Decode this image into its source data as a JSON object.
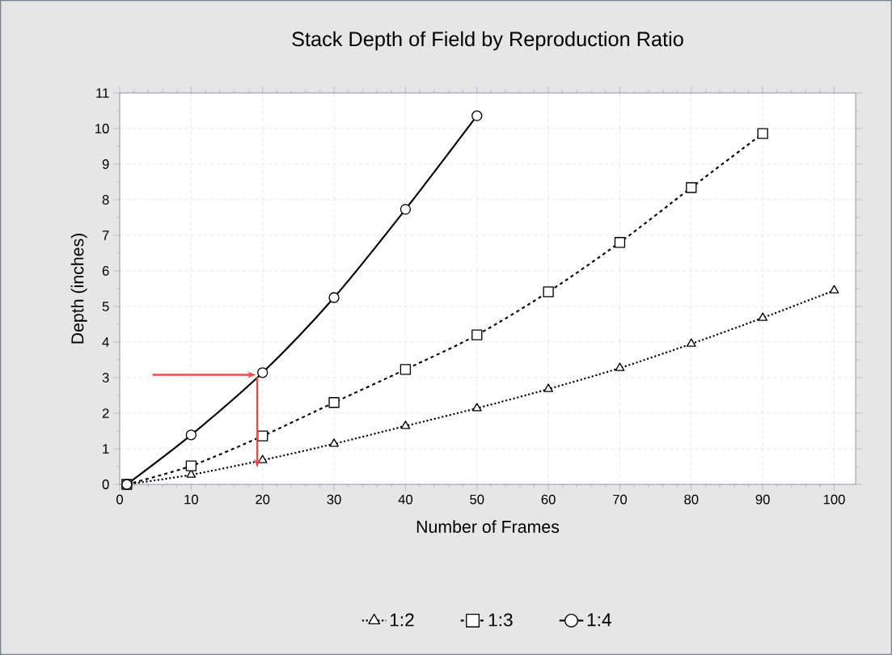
{
  "chart_data": {
    "type": "line",
    "title": "Stack Depth of Field by Reproduction Ratio",
    "xlabel": "Number of Frames",
    "ylabel": "Depth (inches)",
    "xlim": [
      0,
      103
    ],
    "xticks": [
      0,
      10,
      20,
      30,
      40,
      50,
      60,
      70,
      80,
      90,
      100
    ],
    "ylim": [
      0,
      11
    ],
    "yticks": [
      0,
      1,
      2,
      3,
      4,
      5,
      6,
      7,
      8,
      9,
      10,
      11
    ],
    "grid": true,
    "legend": "bottom",
    "series": [
      {
        "name": "1:2",
        "color": "#000000",
        "marker": "triangle",
        "line_style": "dotted",
        "x": [
          1,
          10,
          20,
          30,
          40,
          50,
          60,
          70,
          80,
          90,
          100
        ],
        "values": [
          0,
          0.27,
          0.68,
          1.14,
          1.64,
          2.14,
          2.68,
          3.27,
          3.95,
          4.68,
          5.45
        ]
      },
      {
        "name": "1:3",
        "color": "#000000",
        "marker": "square",
        "line_style": "dashed",
        "x": [
          1,
          10,
          20,
          30,
          40,
          50,
          60,
          70,
          80,
          90
        ],
        "values": [
          0,
          0.52,
          1.36,
          2.3,
          3.23,
          4.2,
          5.41,
          6.8,
          8.34,
          9.86
        ]
      },
      {
        "name": "1:4",
        "color": "#000000",
        "marker": "circle",
        "line_style": "solid",
        "x": [
          1,
          10,
          20,
          30,
          40,
          50
        ],
        "values": [
          0,
          1.39,
          3.14,
          5.25,
          7.73,
          10.36
        ]
      }
    ]
  }
}
